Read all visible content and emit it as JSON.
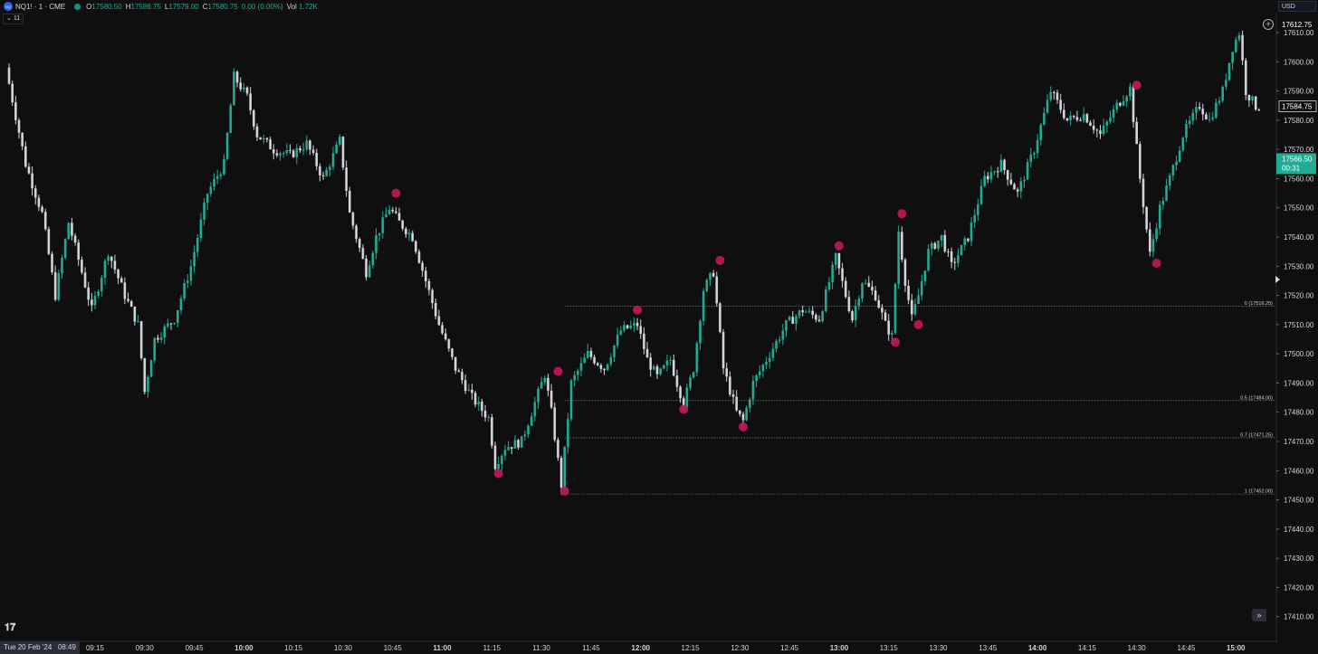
{
  "header": {
    "symbol": "NQ1! · 1 · CME",
    "logo_text": "NQ",
    "ohlc": [
      {
        "label": "O",
        "value": "17580.50"
      },
      {
        "label": "H",
        "value": "17586.75"
      },
      {
        "label": "L",
        "value": "17579.00"
      },
      {
        "label": "C",
        "value": "17580.75"
      },
      {
        "label": "",
        "value": "0.00 (0.00%)"
      },
      {
        "label": "Vol",
        "value": "1.72K"
      }
    ],
    "currency": "USD",
    "indicator_toggle": "11"
  },
  "time_axis": {
    "date_label": "Tue 20 Feb '24",
    "date_time": "08:49",
    "labels": [
      "09:15",
      "09:30",
      "09:45",
      "10:00",
      "10:15",
      "10:30",
      "10:45",
      "11:00",
      "11:15",
      "11:30",
      "11:45",
      "12:00",
      "12:15",
      "12:30",
      "12:45",
      "13:00",
      "13:15",
      "13:30",
      "13:45",
      "14:00",
      "14:15",
      "14:30",
      "14:45",
      "15:00"
    ],
    "bold_labels": [
      "10:00",
      "11:00",
      "12:00",
      "13:00",
      "14:00",
      "15:00"
    ]
  },
  "price_axis": {
    "labels": [
      "17610.00",
      "17600.00",
      "17590.00",
      "17580.00",
      "17570.00",
      "17560.00",
      "17550.00",
      "17540.00",
      "17530.00",
      "17520.00",
      "17510.00",
      "17500.00",
      "17490.00",
      "17480.00",
      "17470.00",
      "17460.00",
      "17450.00",
      "17440.00",
      "17430.00",
      "17420.00",
      "17410.00"
    ],
    "high_label": "17612.75",
    "current_label": "17584.75",
    "last_price": {
      "value": "17566.50",
      "countdown": "00:31",
      "color": "#22ab94"
    }
  },
  "chart_data": {
    "type": "candlestick",
    "timeframe": "1",
    "x_range": [
      "08:49",
      "15:07"
    ],
    "ylim": [
      17405,
      17615
    ],
    "colors": {
      "up": "#22ab94",
      "down": "#d1d4dc",
      "marker": "#c2185b",
      "background": "#0f0f0f"
    },
    "price_path": [
      [
        "08:49",
        17598
      ],
      [
        "08:55",
        17565
      ],
      [
        "09:00",
        17548
      ],
      [
        "09:04",
        17520
      ],
      [
        "09:08",
        17545
      ],
      [
        "09:12",
        17528
      ],
      [
        "09:15",
        17515
      ],
      [
        "09:20",
        17535
      ],
      [
        "09:25",
        17520
      ],
      [
        "09:29",
        17510
      ],
      [
        "09:31",
        17487
      ],
      [
        "09:34",
        17505
      ],
      [
        "09:40",
        17512
      ],
      [
        "09:45",
        17530
      ],
      [
        "09:50",
        17555
      ],
      [
        "09:55",
        17565
      ],
      [
        "09:58",
        17595
      ],
      [
        "10:02",
        17588
      ],
      [
        "10:05",
        17575
      ],
      [
        "10:10",
        17570
      ],
      [
        "10:15",
        17568
      ],
      [
        "10:20",
        17572
      ],
      [
        "10:25",
        17560
      ],
      [
        "10:30",
        17573
      ],
      [
        "10:33",
        17548
      ],
      [
        "10:38",
        17528
      ],
      [
        "10:41",
        17540
      ],
      [
        "10:45",
        17550
      ],
      [
        "10:48",
        17545
      ],
      [
        "10:52",
        17540
      ],
      [
        "10:56",
        17525
      ],
      [
        "11:00",
        17510
      ],
      [
        "11:05",
        17495
      ],
      [
        "11:10",
        17485
      ],
      [
        "11:15",
        17478
      ],
      [
        "11:17",
        17462
      ],
      [
        "11:20",
        17468
      ],
      [
        "11:25",
        17470
      ],
      [
        "11:28",
        17480
      ],
      [
        "11:32",
        17493
      ],
      [
        "11:34",
        17480
      ],
      [
        "11:37",
        17455
      ],
      [
        "11:40",
        17490
      ],
      [
        "11:45",
        17500
      ],
      [
        "11:50",
        17495
      ],
      [
        "11:55",
        17508
      ],
      [
        "12:00",
        17510
      ],
      [
        "12:03",
        17498
      ],
      [
        "12:06",
        17492
      ],
      [
        "12:10",
        17498
      ],
      [
        "12:12",
        17490
      ],
      [
        "12:14",
        17483
      ],
      [
        "12:17",
        17495
      ],
      [
        "12:20",
        17522
      ],
      [
        "12:23",
        17528
      ],
      [
        "12:26",
        17495
      ],
      [
        "12:30",
        17480
      ],
      [
        "12:32",
        17477
      ],
      [
        "12:35",
        17490
      ],
      [
        "12:40",
        17500
      ],
      [
        "12:45",
        17510
      ],
      [
        "12:50",
        17515
      ],
      [
        "12:55",
        17512
      ],
      [
        "13:00",
        17533
      ],
      [
        "13:03",
        17520
      ],
      [
        "13:05",
        17512
      ],
      [
        "13:08",
        17525
      ],
      [
        "13:12",
        17520
      ],
      [
        "13:15",
        17510
      ],
      [
        "13:17",
        17506
      ],
      [
        "13:19",
        17542
      ],
      [
        "13:21",
        17525
      ],
      [
        "13:23",
        17512
      ],
      [
        "13:25",
        17520
      ],
      [
        "13:28",
        17535
      ],
      [
        "13:32",
        17540
      ],
      [
        "13:35",
        17530
      ],
      [
        "13:40",
        17540
      ],
      [
        "13:45",
        17560
      ],
      [
        "13:50",
        17565
      ],
      [
        "13:55",
        17555
      ],
      [
        "14:00",
        17570
      ],
      [
        "14:05",
        17590
      ],
      [
        "14:10",
        17580
      ],
      [
        "14:15",
        17582
      ],
      [
        "14:20",
        17575
      ],
      [
        "14:25",
        17585
      ],
      [
        "14:29",
        17591
      ],
      [
        "14:32",
        17560
      ],
      [
        "14:35",
        17534
      ],
      [
        "14:38",
        17550
      ],
      [
        "14:41",
        17560
      ],
      [
        "14:45",
        17575
      ],
      [
        "14:50",
        17585
      ],
      [
        "14:53",
        17580
      ],
      [
        "14:57",
        17590
      ],
      [
        "15:00",
        17605
      ],
      [
        "15:02",
        17610
      ],
      [
        "15:04",
        17590
      ],
      [
        "15:07",
        17584.75
      ]
    ],
    "swing_markers": [
      {
        "time": "10:46",
        "price": 17555
      },
      {
        "time": "11:17",
        "price": 17459
      },
      {
        "time": "11:35",
        "price": 17494
      },
      {
        "time": "11:37",
        "price": 17453
      },
      {
        "time": "11:59",
        "price": 17515
      },
      {
        "time": "12:13",
        "price": 17481
      },
      {
        "time": "12:24",
        "price": 17532
      },
      {
        "time": "12:31",
        "price": 17475
      },
      {
        "time": "13:00",
        "price": 17537
      },
      {
        "time": "13:17",
        "price": 17504
      },
      {
        "time": "13:19",
        "price": 17548
      },
      {
        "time": "13:24",
        "price": 17510
      },
      {
        "time": "14:30",
        "price": 17592
      },
      {
        "time": "14:36",
        "price": 17531
      }
    ],
    "fib_levels": [
      {
        "level": "0",
        "price": 17516.25,
        "label": "0 (17516.25)",
        "start_time": "11:37"
      },
      {
        "level": "0.5",
        "price": 17484.0,
        "label": "0.5 (17484.00)",
        "start_time": "11:37"
      },
      {
        "level": "0.7",
        "price": 17471.25,
        "label": "0.7 (17471.25)",
        "start_time": "11:37"
      },
      {
        "level": "1",
        "price": 17452.0,
        "label": "1 (17452.00)",
        "start_time": "11:37"
      }
    ]
  }
}
